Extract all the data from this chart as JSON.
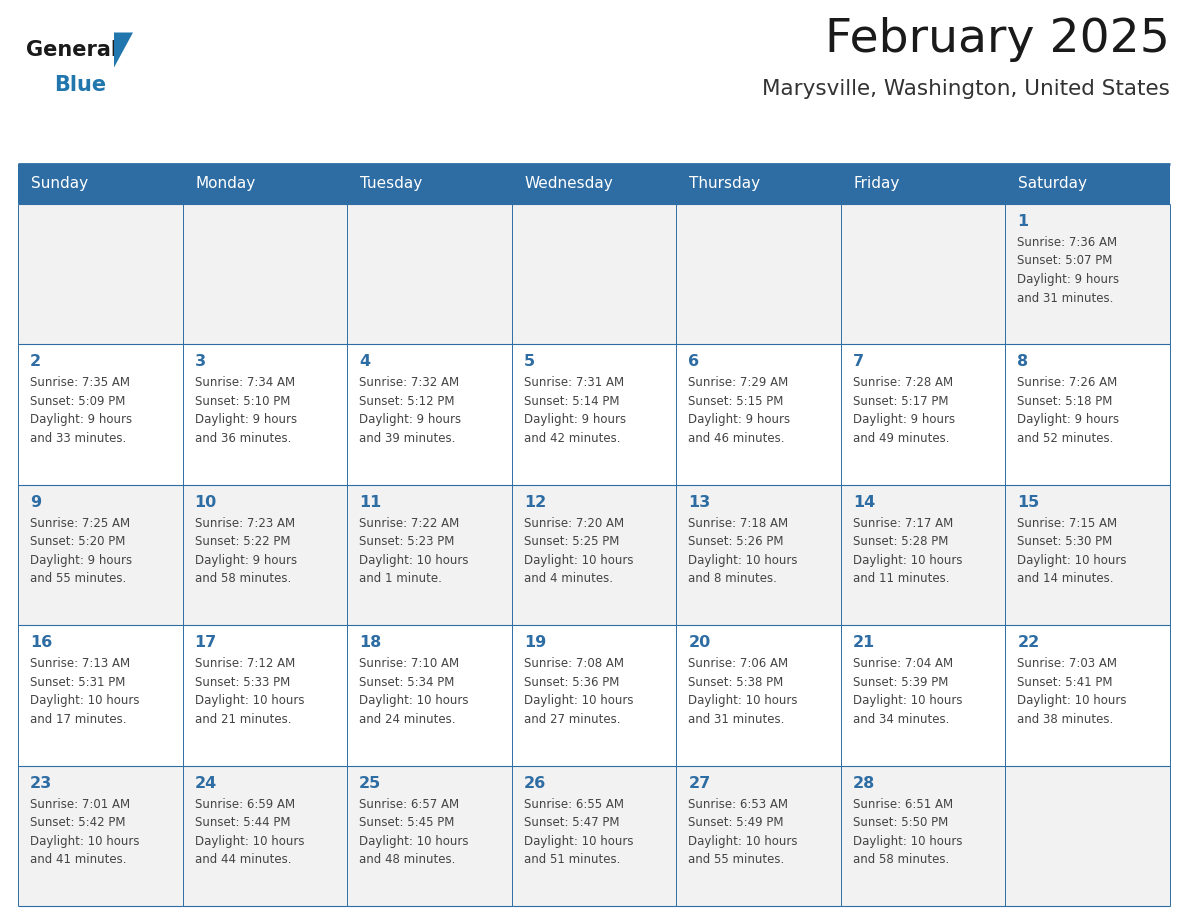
{
  "title": "February 2025",
  "subtitle": "Marysville, Washington, United States",
  "days_of_week": [
    "Sunday",
    "Monday",
    "Tuesday",
    "Wednesday",
    "Thursday",
    "Friday",
    "Saturday"
  ],
  "header_bg": "#2E6DA4",
  "header_text": "#FFFFFF",
  "cell_bg_odd": "#F2F2F2",
  "cell_bg_even": "#FFFFFF",
  "border_color": "#2E6DA4",
  "day_number_color": "#2E6DA4",
  "text_color": "#444444",
  "logo_general_color": "#1a1a1a",
  "logo_blue_color": "#2176AE",
  "title_color": "#1a1a1a",
  "subtitle_color": "#333333",
  "calendar_data": [
    [
      null,
      null,
      null,
      null,
      null,
      null,
      {
        "day": "1",
        "sunrise": "7:36 AM",
        "sunset": "5:07 PM",
        "daylight": "9 hours\nand 31 minutes."
      }
    ],
    [
      {
        "day": "2",
        "sunrise": "7:35 AM",
        "sunset": "5:09 PM",
        "daylight": "9 hours\nand 33 minutes."
      },
      {
        "day": "3",
        "sunrise": "7:34 AM",
        "sunset": "5:10 PM",
        "daylight": "9 hours\nand 36 minutes."
      },
      {
        "day": "4",
        "sunrise": "7:32 AM",
        "sunset": "5:12 PM",
        "daylight": "9 hours\nand 39 minutes."
      },
      {
        "day": "5",
        "sunrise": "7:31 AM",
        "sunset": "5:14 PM",
        "daylight": "9 hours\nand 42 minutes."
      },
      {
        "day": "6",
        "sunrise": "7:29 AM",
        "sunset": "5:15 PM",
        "daylight": "9 hours\nand 46 minutes."
      },
      {
        "day": "7",
        "sunrise": "7:28 AM",
        "sunset": "5:17 PM",
        "daylight": "9 hours\nand 49 minutes."
      },
      {
        "day": "8",
        "sunrise": "7:26 AM",
        "sunset": "5:18 PM",
        "daylight": "9 hours\nand 52 minutes."
      }
    ],
    [
      {
        "day": "9",
        "sunrise": "7:25 AM",
        "sunset": "5:20 PM",
        "daylight": "9 hours\nand 55 minutes."
      },
      {
        "day": "10",
        "sunrise": "7:23 AM",
        "sunset": "5:22 PM",
        "daylight": "9 hours\nand 58 minutes."
      },
      {
        "day": "11",
        "sunrise": "7:22 AM",
        "sunset": "5:23 PM",
        "daylight": "10 hours\nand 1 minute."
      },
      {
        "day": "12",
        "sunrise": "7:20 AM",
        "sunset": "5:25 PM",
        "daylight": "10 hours\nand 4 minutes."
      },
      {
        "day": "13",
        "sunrise": "7:18 AM",
        "sunset": "5:26 PM",
        "daylight": "10 hours\nand 8 minutes."
      },
      {
        "day": "14",
        "sunrise": "7:17 AM",
        "sunset": "5:28 PM",
        "daylight": "10 hours\nand 11 minutes."
      },
      {
        "day": "15",
        "sunrise": "7:15 AM",
        "sunset": "5:30 PM",
        "daylight": "10 hours\nand 14 minutes."
      }
    ],
    [
      {
        "day": "16",
        "sunrise": "7:13 AM",
        "sunset": "5:31 PM",
        "daylight": "10 hours\nand 17 minutes."
      },
      {
        "day": "17",
        "sunrise": "7:12 AM",
        "sunset": "5:33 PM",
        "daylight": "10 hours\nand 21 minutes."
      },
      {
        "day": "18",
        "sunrise": "7:10 AM",
        "sunset": "5:34 PM",
        "daylight": "10 hours\nand 24 minutes."
      },
      {
        "day": "19",
        "sunrise": "7:08 AM",
        "sunset": "5:36 PM",
        "daylight": "10 hours\nand 27 minutes."
      },
      {
        "day": "20",
        "sunrise": "7:06 AM",
        "sunset": "5:38 PM",
        "daylight": "10 hours\nand 31 minutes."
      },
      {
        "day": "21",
        "sunrise": "7:04 AM",
        "sunset": "5:39 PM",
        "daylight": "10 hours\nand 34 minutes."
      },
      {
        "day": "22",
        "sunrise": "7:03 AM",
        "sunset": "5:41 PM",
        "daylight": "10 hours\nand 38 minutes."
      }
    ],
    [
      {
        "day": "23",
        "sunrise": "7:01 AM",
        "sunset": "5:42 PM",
        "daylight": "10 hours\nand 41 minutes."
      },
      {
        "day": "24",
        "sunrise": "6:59 AM",
        "sunset": "5:44 PM",
        "daylight": "10 hours\nand 44 minutes."
      },
      {
        "day": "25",
        "sunrise": "6:57 AM",
        "sunset": "5:45 PM",
        "daylight": "10 hours\nand 48 minutes."
      },
      {
        "day": "26",
        "sunrise": "6:55 AM",
        "sunset": "5:47 PM",
        "daylight": "10 hours\nand 51 minutes."
      },
      {
        "day": "27",
        "sunrise": "6:53 AM",
        "sunset": "5:49 PM",
        "daylight": "10 hours\nand 55 minutes."
      },
      {
        "day": "28",
        "sunrise": "6:51 AM",
        "sunset": "5:50 PM",
        "daylight": "10 hours\nand 58 minutes."
      },
      null
    ]
  ]
}
